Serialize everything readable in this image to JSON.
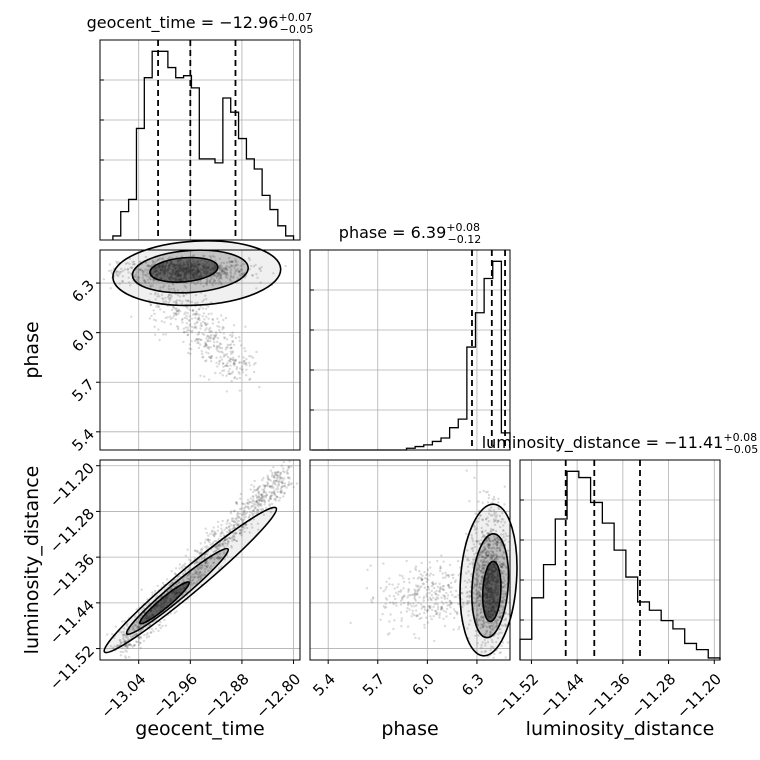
{
  "chart_data": {
    "type": "corner",
    "parameters": [
      "geocent_time",
      "phase",
      "luminosity_distance"
    ],
    "titles": [
      {
        "param": "geocent_time",
        "prefix": "geocent_time = ",
        "value": "−12.96",
        "plus": "+0.07",
        "minus": "−0.05"
      },
      {
        "param": "phase",
        "prefix": "phase = ",
        "value": "6.39",
        "plus": "+0.08",
        "minus": "−0.12"
      },
      {
        "param": "luminosity_distance",
        "prefix": "luminosity_distance = ",
        "value": "−11.41",
        "plus": "+0.08",
        "minus": "−0.05"
      }
    ],
    "axes": {
      "geocent_time": {
        "range": [
          -13.1,
          -12.79
        ],
        "ticks": [
          -13.04,
          -12.96,
          -12.88,
          -12.8
        ],
        "tick_labels": [
          "−13.04",
          "−12.96",
          "−12.88",
          "−12.80"
        ]
      },
      "phase": {
        "range": [
          5.29,
          6.5
        ],
        "ticks": [
          5.4,
          5.7,
          6.0,
          6.3
        ],
        "tick_labels": [
          "5.4",
          "5.7",
          "6.0",
          "6.3"
        ]
      },
      "luminosity_distance": {
        "range": [
          -11.54,
          -11.19
        ],
        "ticks": [
          -11.52,
          -11.44,
          -11.36,
          -11.28,
          -11.2
        ],
        "tick_labels": [
          "−11.52",
          "−11.44",
          "−11.36",
          "−11.28",
          "−11.20"
        ]
      }
    },
    "histograms": [
      {
        "param": "geocent_time",
        "bin_edges_range": [
          -13.08,
          -12.8
        ],
        "counts": [
          2,
          14,
          20,
          55,
          80,
          93,
          93,
          85,
          80,
          81,
          75,
          40,
          40,
          38,
          70,
          63,
          50,
          40,
          35,
          22,
          15,
          7,
          2
        ],
        "quantiles": [
          -13.01,
          -12.96,
          -12.89
        ]
      },
      {
        "param": "phase",
        "bin_edges_range": [
          5.3,
          6.5
        ],
        "counts": [
          0,
          0,
          0,
          0,
          0,
          0,
          0,
          0,
          0,
          0,
          0,
          1,
          2,
          3,
          5,
          7,
          13,
          18,
          60,
          80,
          100,
          110,
          10
        ],
        "quantiles": [
          6.27,
          6.39,
          6.47
        ]
      },
      {
        "param": "luminosity_distance",
        "bin_edges_range": [
          -11.54,
          -11.19
        ],
        "counts": [
          10,
          30,
          46,
          68,
          91,
          88,
          76,
          66,
          53,
          40,
          28,
          24,
          19,
          15,
          8,
          5,
          1
        ],
        "quantiles": [
          -11.46,
          -11.41,
          -11.33
        ]
      }
    ],
    "scatter_pairs": [
      {
        "x": "geocent_time",
        "y": "phase"
      },
      {
        "x": "geocent_time",
        "y": "luminosity_distance"
      },
      {
        "x": "phase",
        "y": "luminosity_distance"
      }
    ],
    "colors": {
      "line": "#000000",
      "points": "#555555",
      "grid": "#b0b0b0"
    },
    "grid": true
  }
}
